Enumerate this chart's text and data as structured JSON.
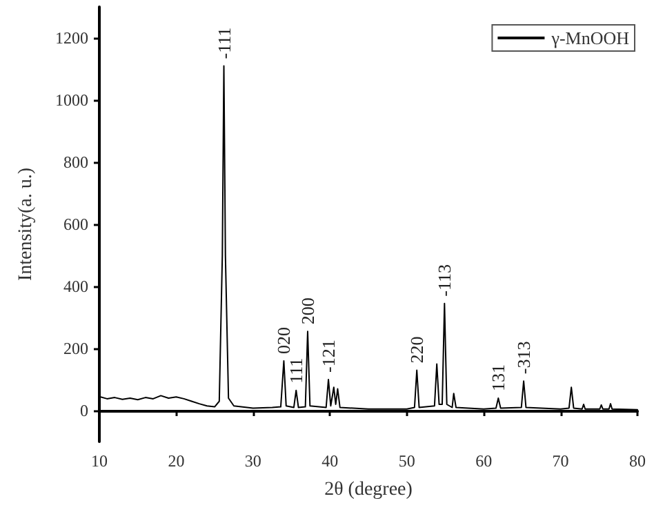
{
  "chart_data": {
    "type": "line",
    "xlabel": "2θ (degree)",
    "ylabel": "Intensity(a. u.)",
    "xlim": [
      10,
      80
    ],
    "xticks": [
      10,
      20,
      30,
      40,
      50,
      60,
      70,
      80
    ],
    "ylim": [
      -100,
      1300
    ],
    "yticks": [
      0,
      200,
      400,
      600,
      800,
      1000,
      1200
    ],
    "grid": false,
    "legend": "top right",
    "marker": "none",
    "line_style": "solid",
    "series": [
      {
        "name": "γ-MnOOH",
        "color": "#000000",
        "x": [
          10,
          11,
          12,
          13,
          14,
          15,
          16,
          17,
          18,
          19,
          20,
          21,
          22,
          23,
          24,
          25,
          25.6,
          26.0,
          26.2,
          26.4,
          26.8,
          27.5,
          30,
          32.5,
          33.6,
          34.0,
          34.3,
          35.3,
          35.6,
          35.9,
          36.8,
          37.1,
          37.4,
          39.5,
          39.8,
          40.1,
          40.5,
          40.75,
          41.0,
          41.3,
          45,
          50,
          51.0,
          51.3,
          51.6,
          53.6,
          53.9,
          54.2,
          54.6,
          54.9,
          55.2,
          55.9,
          56.1,
          56.4,
          60,
          61.6,
          61.9,
          62.2,
          64.9,
          65.2,
          65.5,
          70,
          71.1,
          71.4,
          71.7,
          72.8,
          73.0,
          73.2,
          75.1,
          75.3,
          75.5,
          76.3,
          76.5,
          76.7,
          80
        ],
        "values": [
          45,
          38,
          42,
          36,
          40,
          35,
          42,
          38,
          48,
          40,
          44,
          38,
          30,
          22,
          15,
          12,
          30,
          500,
          1110,
          500,
          40,
          15,
          8,
          10,
          12,
          160,
          15,
          10,
          65,
          10,
          12,
          255,
          15,
          10,
          100,
          15,
          75,
          20,
          70,
          10,
          5,
          5,
          10,
          130,
          10,
          15,
          150,
          20,
          20,
          345,
          20,
          10,
          55,
          10,
          5,
          8,
          40,
          8,
          10,
          95,
          10,
          5,
          8,
          75,
          8,
          5,
          20,
          5,
          5,
          18,
          5,
          5,
          22,
          5,
          3
        ]
      }
    ],
    "annotations": [
      {
        "text": "-111",
        "x": 26.2,
        "y": 1110
      },
      {
        "text": "020",
        "x": 34.0,
        "y": 160
      },
      {
        "text": "111",
        "x": 35.6,
        "y": 65
      },
      {
        "text": "200",
        "x": 37.1,
        "y": 255
      },
      {
        "text": "-121",
        "x": 39.8,
        "y": 100
      },
      {
        "text": "220",
        "x": 51.3,
        "y": 130
      },
      {
        "text": "-113",
        "x": 54.9,
        "y": 345
      },
      {
        "text": "131",
        "x": 61.9,
        "y": 40
      },
      {
        "text": "-313",
        "x": 65.2,
        "y": 95
      }
    ]
  }
}
